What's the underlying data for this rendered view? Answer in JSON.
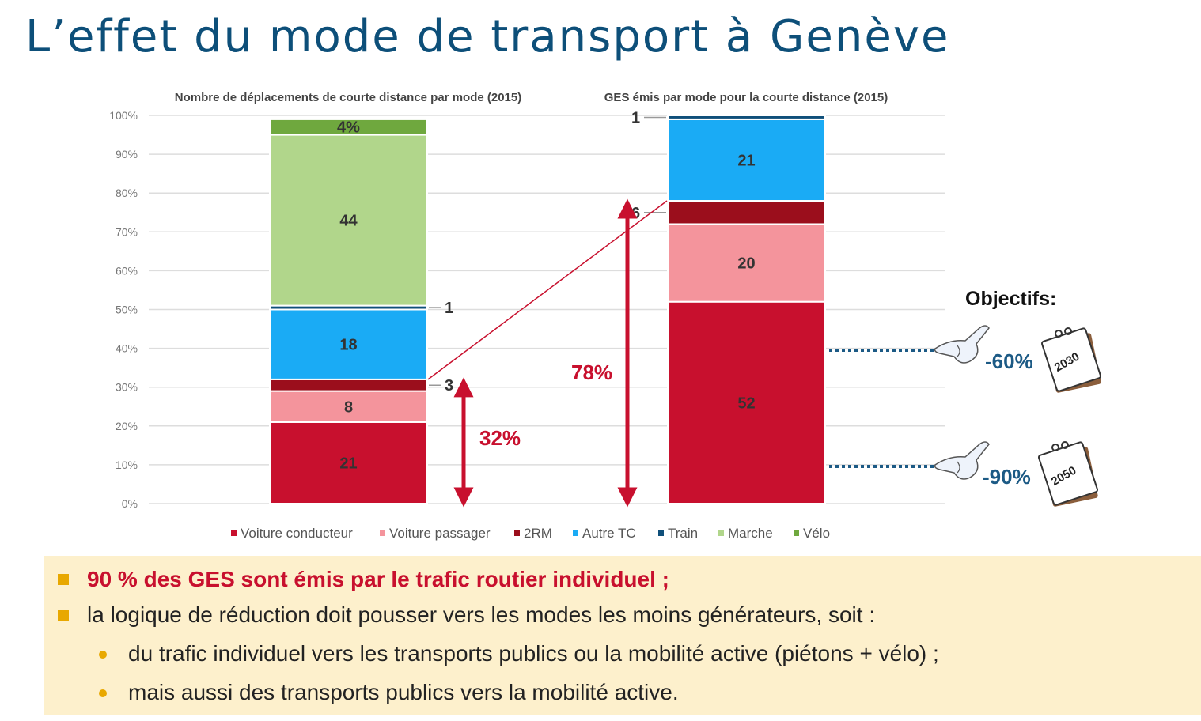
{
  "title": "L’effet du mode de transport à Genève",
  "chart_data": [
    {
      "type": "bar",
      "stacked": true,
      "title": "Nombre de déplacements de courte distance par mode (2015)",
      "y_ticks": [
        "0%",
        "10%",
        "20%",
        "30%",
        "40%",
        "50%",
        "60%",
        "70%",
        "80%",
        "90%",
        "100%"
      ],
      "ylim": [
        0,
        100
      ],
      "segments": [
        {
          "name": "Voiture conducteur",
          "value": 21,
          "label": "21"
        },
        {
          "name": "Voiture passager",
          "value": 8,
          "label": "8"
        },
        {
          "name": "2RM",
          "value": 3,
          "label": "3"
        },
        {
          "name": "Autre TC",
          "value": 18,
          "label": "18"
        },
        {
          "name": "Train",
          "value": 1,
          "label": "1"
        },
        {
          "name": "Marche",
          "value": 44,
          "label": "44"
        },
        {
          "name": "Vélo",
          "value": 4,
          "label": "4%"
        }
      ],
      "annotation": "32%",
      "annotation_value": 32
    },
    {
      "type": "bar",
      "stacked": true,
      "title": "GES émis par mode pour la courte distance (2015)",
      "segments": [
        {
          "name": "Voiture conducteur",
          "value": 52,
          "label": "52"
        },
        {
          "name": "Voiture passager",
          "value": 20,
          "label": "20"
        },
        {
          "name": "2RM",
          "value": 6,
          "label": "6"
        },
        {
          "name": "Autre TC",
          "value": 21,
          "label": "21"
        },
        {
          "name": "Train",
          "value": 1,
          "label": "1"
        }
      ],
      "annotation": "78%",
      "annotation_value": 78
    }
  ],
  "colors": {
    "Voiture conducteur": "#c8102e",
    "Voiture passager": "#f4949c",
    "2RM": "#9b0e1c",
    "Autre TC": "#1aabf5",
    "Train": "#0f4f7a",
    "Marche": "#b1d68b",
    "Vélo": "#6fa83e"
  },
  "legend": [
    "Voiture conducteur",
    "Voiture passager",
    "2RM",
    "Autre TC",
    "Train",
    "Marche",
    "Vélo"
  ],
  "objectives": {
    "title": "Objectifs:",
    "items": [
      {
        "value": "-60%",
        "year": "2030",
        "icon": "pointing-hand-icon"
      },
      {
        "value": "-90%",
        "year": "2050",
        "icon": "pointing-hand-icon"
      }
    ]
  },
  "summary": {
    "bullet1": "90 % des GES sont émis par le trafic routier individuel ;",
    "bullet2": "la logique de réduction doit pousser vers les modes les moins générateurs, soit :",
    "sub1": "du trafic individuel vers les transports publics ou la mobilité active (piétons + vélo) ;",
    "sub2": "mais aussi des transports publics vers la mobilité active."
  }
}
